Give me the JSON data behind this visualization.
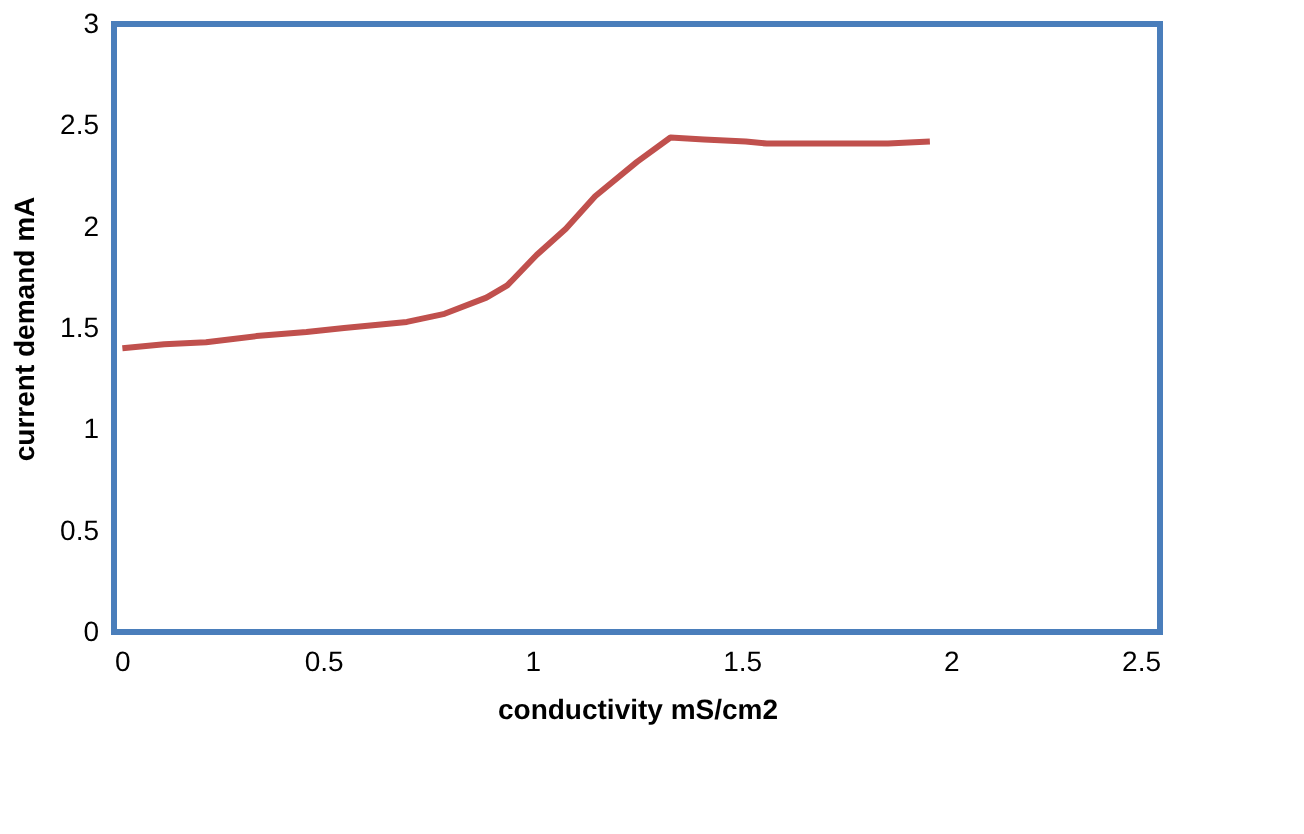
{
  "chart_data": {
    "type": "line",
    "xlabel": "conductivity mS/cm2",
    "ylabel": "current demand mA",
    "x": [
      0.02,
      0.12,
      0.22,
      0.34,
      0.46,
      0.55,
      0.7,
      0.79,
      0.89,
      0.94,
      1.01,
      1.08,
      1.15,
      1.25,
      1.33,
      1.41,
      1.51,
      1.56,
      1.7,
      1.85,
      1.95
    ],
    "series": [
      {
        "color": "#c0504d",
        "values": [
          1.4,
          1.42,
          1.43,
          1.46,
          1.48,
          1.5,
          1.53,
          1.57,
          1.65,
          1.71,
          1.86,
          1.99,
          2.15,
          2.32,
          2.44,
          2.43,
          2.42,
          2.41,
          2.41,
          2.41,
          2.42
        ]
      }
    ],
    "xlim": [
      0,
      2.5
    ],
    "xticks": [
      0,
      0.5,
      1,
      1.5,
      2,
      2.5
    ],
    "ylim": [
      0,
      3
    ],
    "yticks": [
      0,
      0.5,
      1,
      1.5,
      2,
      2.5,
      3
    ],
    "grid": false,
    "legend": false,
    "marker": "none",
    "line_style": "solid"
  }
}
